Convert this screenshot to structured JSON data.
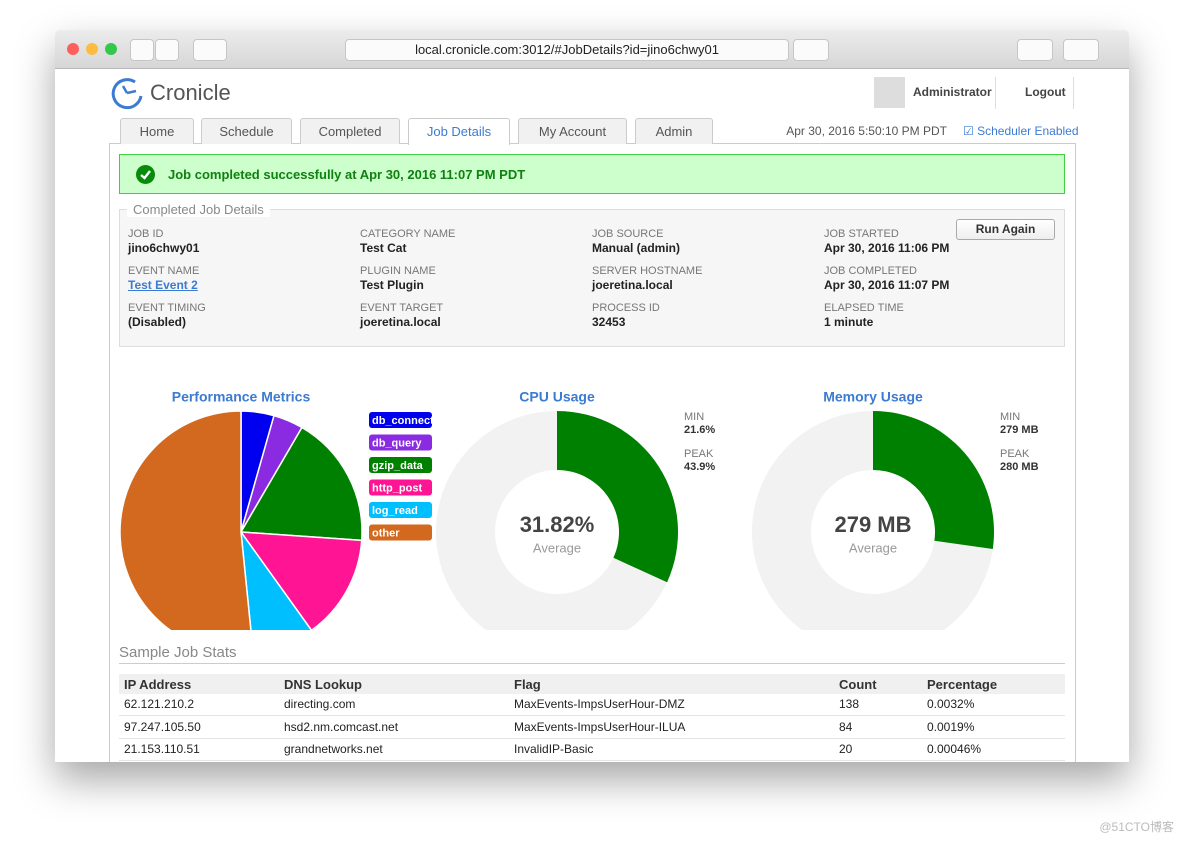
{
  "browser": {
    "url": "local.cronicle.com:3012/#JobDetails?id=jino6chwy01"
  },
  "header": {
    "logo": "Cronicle",
    "user": "Administrator",
    "logout": "Logout",
    "datetime": "Apr 30, 2016 5:50:10 PM PDT",
    "scheduler": "Scheduler Enabled"
  },
  "tabs": [
    "Home",
    "Schedule",
    "Completed",
    "Job Details",
    "My Account",
    "Admin"
  ],
  "banner": "Job completed successfully at Apr 30, 2016 11:07 PM PDT",
  "details": {
    "legend": "Completed Job Details",
    "button": "Run Again",
    "columns": [
      [
        {
          "label": "JOB ID",
          "value": "jino6chwy01"
        },
        {
          "label": "EVENT NAME",
          "value": "Test Event 2"
        },
        {
          "label": "EVENT TIMING",
          "value": "(Disabled)"
        }
      ],
      [
        {
          "label": "CATEGORY NAME",
          "value": "Test Cat"
        },
        {
          "label": "PLUGIN NAME",
          "value": "Test Plugin"
        },
        {
          "label": "EVENT TARGET",
          "value": "joeretina.local"
        }
      ],
      [
        {
          "label": "JOB SOURCE",
          "value": "Manual (admin)"
        },
        {
          "label": "SERVER HOSTNAME",
          "value": "joeretina.local"
        },
        {
          "label": "PROCESS ID",
          "value": "32453"
        }
      ],
      [
        {
          "label": "JOB STARTED",
          "value": "Apr 30, 2016 11:06 PM"
        },
        {
          "label": "JOB COMPLETED",
          "value": "Apr 30, 2016 11:07 PM"
        },
        {
          "label": "ELAPSED TIME",
          "value": "1 minute"
        }
      ]
    ]
  },
  "chart_data": [
    {
      "type": "pie",
      "title": "Performance Metrics",
      "categories": [
        "db_connect",
        "db_query",
        "gzip_data",
        "http_post",
        "log_read",
        "other"
      ],
      "values": [
        4.4,
        4,
        17.7,
        14,
        8.3,
        51.6
      ],
      "colors": [
        "#0000ee",
        "#8a2be2",
        "#008000",
        "#ff1493",
        "#00bfff",
        "#d2691e"
      ]
    },
    {
      "type": "gauge",
      "title": "CPU Usage",
      "values": [
        31.82
      ],
      "value_labels": [
        "31.82%"
      ],
      "caption": "Average",
      "ylim": [
        0,
        100
      ],
      "color": "#008000",
      "stats": [
        {
          "label": "MIN",
          "value": "21.6%"
        },
        {
          "label": "PEAK",
          "value": "43.9%"
        }
      ]
    },
    {
      "type": "gauge",
      "title": "Memory Usage",
      "values": [
        279
      ],
      "value_labels": [
        "279 MB"
      ],
      "caption": "Average",
      "ylim": [
        0,
        1024
      ],
      "color": "#008000",
      "stats": [
        {
          "label": "MIN",
          "value": "279 MB"
        },
        {
          "label": "PEAK",
          "value": "280 MB"
        }
      ]
    }
  ],
  "stats_table": {
    "title": "Sample Job Stats",
    "columns": [
      "IP Address",
      "DNS Lookup",
      "Flag",
      "Count",
      "Percentage"
    ],
    "rows": [
      [
        "62.121.210.2",
        "directing.com",
        "MaxEvents-ImpsUserHour-DMZ",
        "138",
        "0.0032%"
      ],
      [
        "97.247.105.50",
        "hsd2.nm.comcast.net",
        "MaxEvents-ImpsUserHour-ILUA",
        "84",
        "0.0019%"
      ],
      [
        "21.153.110.51",
        "grandnetworks.net",
        "InvalidIP-Basic",
        "20",
        "0.00046%"
      ]
    ]
  },
  "watermark": "@51CTO博客"
}
